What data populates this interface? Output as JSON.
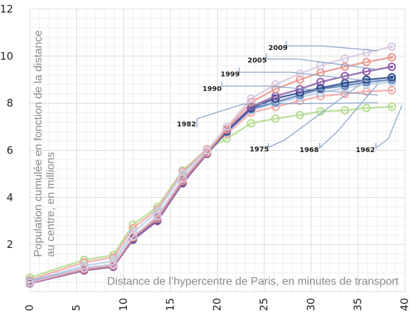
{
  "chart_data": {
    "type": "line",
    "title": "",
    "xlabel": "Distance de l’hypercentre de Paris, en minutes de transport",
    "ylabel": [
      "Population cumulée en fonction de la distance",
      "au centre, en millions"
    ],
    "xlim": [
      0,
      40
    ],
    "ylim": [
      0,
      12
    ],
    "x_ticks": [
      "0",
      "5",
      "10",
      "15",
      "20",
      "25",
      "30",
      "35",
      "40"
    ],
    "y_ticks": [
      "2",
      "4",
      "6",
      "8",
      "10",
      "12"
    ],
    "grid": true,
    "x": [
      0,
      5.8,
      8.9,
      11,
      13.6,
      16.3,
      18.9,
      21,
      23.6,
      26.2,
      28.8,
      31,
      33.6,
      35.9,
      38.6
    ],
    "series": [
      {
        "name": "1962",
        "color": "#b3dc8e",
        "values": [
          0.6,
          1.35,
          1.55,
          2.85,
          3.6,
          5.15,
          6.05,
          6.5,
          7.15,
          7.35,
          7.5,
          7.65,
          7.7,
          7.8,
          7.85
        ]
      },
      {
        "name": "1968",
        "color": "#f2a6a6",
        "values": [
          0.5,
          1.25,
          1.45,
          2.7,
          3.5,
          5.1,
          6.05,
          6.7,
          7.6,
          7.85,
          8.1,
          8.3,
          8.4,
          8.5,
          8.55
        ]
      },
      {
        "name": "1975",
        "color": "#b9cfe6",
        "values": [
          0.45,
          1.1,
          1.3,
          2.5,
          3.4,
          5.0,
          6.0,
          6.75,
          7.7,
          8.0,
          8.25,
          8.45,
          8.65,
          8.8,
          8.9
        ]
      },
      {
        "name": "1982",
        "color": "#5b7cb5",
        "values": [
          0.42,
          1.0,
          1.15,
          2.3,
          3.15,
          4.75,
          5.9,
          6.8,
          7.75,
          8.05,
          8.35,
          8.6,
          8.75,
          8.9,
          9.0
        ]
      },
      {
        "name": "1990",
        "color": "#2e4a8a",
        "values": [
          0.4,
          0.95,
          1.1,
          2.25,
          3.05,
          4.65,
          5.85,
          6.8,
          7.8,
          8.2,
          8.45,
          8.65,
          8.85,
          9.0,
          9.1
        ]
      },
      {
        "name": "1999",
        "color": "#8a5aa8",
        "values": [
          0.35,
          0.9,
          1.05,
          2.2,
          3.0,
          4.6,
          5.85,
          6.85,
          7.85,
          8.3,
          8.6,
          8.9,
          9.15,
          9.35,
          9.55
        ]
      },
      {
        "name": "2005",
        "color": "#e8948a",
        "values": [
          0.38,
          0.95,
          1.1,
          2.3,
          3.1,
          4.7,
          5.9,
          6.9,
          8.05,
          8.6,
          9.0,
          9.3,
          9.55,
          9.75,
          9.95
        ]
      },
      {
        "name": "2009",
        "color": "#d9c8df",
        "values": [
          0.4,
          1.0,
          1.15,
          2.35,
          3.2,
          4.8,
          6.0,
          7.0,
          8.2,
          8.8,
          9.25,
          9.6,
          9.9,
          10.15,
          10.4
        ]
      }
    ],
    "annotations": [
      "2009",
      "2005",
      "1999",
      "1990",
      "1982",
      "1975",
      "1968",
      "1962"
    ]
  }
}
